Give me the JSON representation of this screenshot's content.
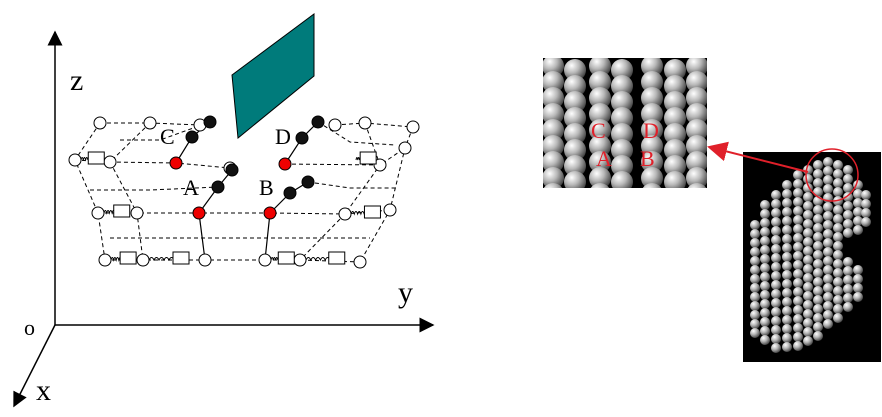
{
  "axes": {
    "z": "z",
    "y": "y",
    "origin": "o",
    "x": "x"
  },
  "node_labels": [
    "C",
    "D",
    "A",
    "B"
  ],
  "inset_labels": [
    "C",
    "D",
    "A",
    "B"
  ]
}
